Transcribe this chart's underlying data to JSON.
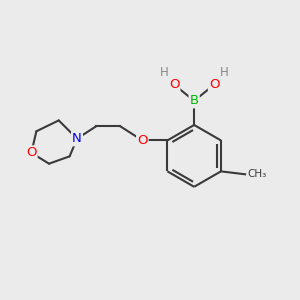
{
  "bg_color": "#ebebeb",
  "bond_color": "#3a3a3a",
  "bond_width": 1.5,
  "atom_colors": {
    "B": "#00bb00",
    "O": "#ff0000",
    "N": "#0000ee",
    "C": "#3a3a3a",
    "H": "#888888"
  },
  "font_size": 9.5,
  "font_size_h": 8.5
}
